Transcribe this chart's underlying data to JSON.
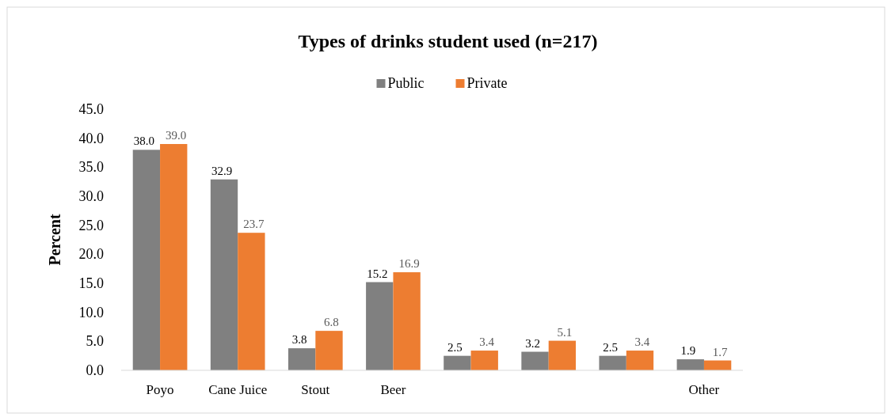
{
  "chart_data": {
    "type": "bar",
    "title": "Types of drinks student used (n=217)",
    "ylabel": "Percent",
    "categories": [
      "Poyo",
      "Cane Juice",
      "Stout",
      "Beer",
      null,
      null,
      null,
      "Other"
    ],
    "series": [
      {
        "name": "Public",
        "color": "#808080",
        "values": [
          38.0,
          32.9,
          3.8,
          15.2,
          2.5,
          3.2,
          2.5,
          1.9
        ],
        "value_labels": [
          "38.0",
          "32.9",
          "3.8",
          "15.2",
          "2.5",
          "3.2",
          "2.5",
          "1.9"
        ]
      },
      {
        "name": "Private",
        "color": "#ed7d31",
        "values": [
          39.0,
          23.7,
          6.8,
          16.9,
          3.4,
          5.1,
          3.4,
          1.7
        ],
        "value_labels": [
          "39.0",
          "23.7",
          "6.8",
          "16.9",
          "3.4",
          "5.1",
          "3.4",
          "1.7"
        ]
      }
    ],
    "ylim": [
      0,
      45
    ],
    "yticks": [
      {
        "value": 0,
        "label": "0.0"
      },
      {
        "value": 5,
        "label": "5.0"
      },
      {
        "value": 10,
        "label": "10.0"
      },
      {
        "value": 15,
        "label": "15.0"
      },
      {
        "value": 20,
        "label": "20.0"
      },
      {
        "value": 25,
        "label": "25.0"
      },
      {
        "value": 30,
        "label": "30.0"
      },
      {
        "value": 35,
        "label": "35.0"
      },
      {
        "value": 40,
        "label": "40.0"
      },
      {
        "value": 45,
        "label": "45.0"
      }
    ],
    "legend": "top",
    "grid": false
  }
}
